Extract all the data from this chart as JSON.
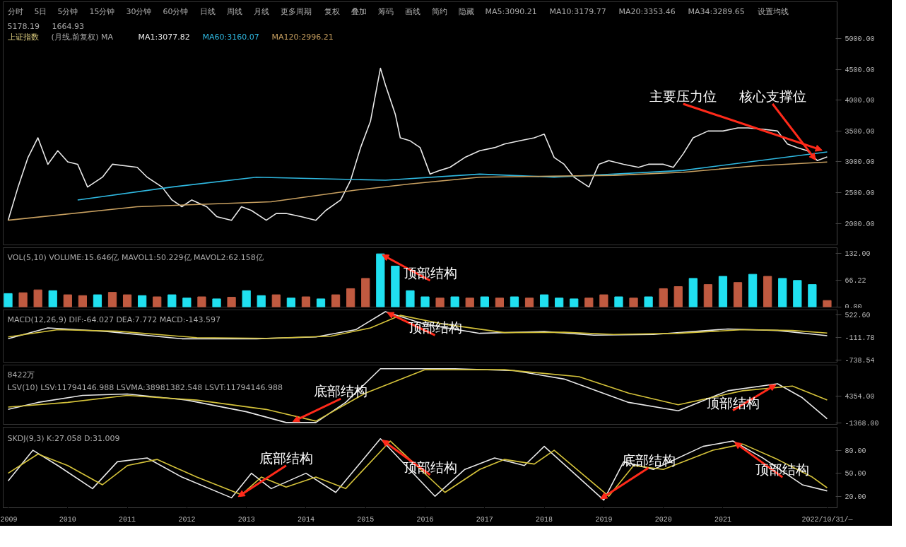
{
  "chart_data": [
    {
      "type": "line",
      "title": "上证指数",
      "subtitle": "(月线,前复权)  MA",
      "xlim": [
        "2008-12",
        "2022-12"
      ],
      "ylim": [
        1650,
        5600
      ],
      "yticks": [
        {
          "value": 2000,
          "label": "2000.00"
        },
        {
          "value": 2500,
          "label": "2500.00"
        },
        {
          "value": 3000,
          "label": "3000.00"
        },
        {
          "value": 3500,
          "label": "3500.00"
        },
        {
          "value": 4000,
          "label": "4000.00"
        },
        {
          "value": 4500,
          "label": "4500.00"
        },
        {
          "value": 5000,
          "label": "5000.00"
        }
      ],
      "tick_labels": "y",
      "series": [
        {
          "name": "MA1:3077.82",
          "color": "#e8e8e8",
          "x": [
            "2009-01",
            "2009-03",
            "2009-05",
            "2009-07",
            "2009-09",
            "2009-11",
            "2010-01",
            "2010-03",
            "2010-05",
            "2010-08",
            "2010-10",
            "2011-01",
            "2011-03",
            "2011-05",
            "2011-08",
            "2011-10",
            "2011-12",
            "2012-02",
            "2012-05",
            "2012-07",
            "2012-10",
            "2012-12",
            "2013-02",
            "2013-05",
            "2013-07",
            "2013-09",
            "2013-12",
            "2014-03",
            "2014-05",
            "2014-08",
            "2014-10",
            "2014-12",
            "2015-02",
            "2015-04",
            "2015-05",
            "2015-07",
            "2015-08",
            "2015-10",
            "2015-12",
            "2016-02",
            "2016-04",
            "2016-06",
            "2016-09",
            "2016-12",
            "2017-03",
            "2017-05",
            "2017-08",
            "2017-11",
            "2018-01",
            "2018-03",
            "2018-05",
            "2018-07",
            "2018-10",
            "2018-12",
            "2019-02",
            "2019-05",
            "2019-08",
            "2019-10",
            "2020-01",
            "2020-03",
            "2020-05",
            "2020-07",
            "2020-10",
            "2021-01",
            "2021-04",
            "2021-06",
            "2021-09",
            "2021-12",
            "2022-02",
            "2022-04",
            "2022-06",
            "2022-08",
            "2022-10"
          ],
          "values": [
            2050,
            2590,
            3070,
            3390,
            2960,
            3180,
            3000,
            2960,
            2590,
            2750,
            2960,
            2930,
            2910,
            2750,
            2590,
            2380,
            2270,
            2380,
            2270,
            2110,
            2050,
            2270,
            2210,
            2050,
            2160,
            2160,
            2110,
            2050,
            2210,
            2380,
            2700,
            3230,
            3660,
            4520,
            4250,
            3770,
            3390,
            3340,
            3230,
            2800,
            2860,
            2910,
            3070,
            3180,
            3230,
            3290,
            3340,
            3390,
            3450,
            3070,
            2960,
            2750,
            2590,
            2960,
            3020,
            2960,
            2910,
            2960,
            2960,
            2910,
            3130,
            3390,
            3500,
            3500,
            3550,
            3550,
            3530,
            3500,
            3290,
            3230,
            3180,
            3020,
            3080
          ]
        },
        {
          "name": "MA60:3160.07",
          "color": "#2fb8e0",
          "x": [
            "2010-03",
            "2011-10",
            "2013-03",
            "2015-05",
            "2016-12",
            "2018-03",
            "2020-05",
            "2022-10"
          ],
          "values": [
            2380,
            2590,
            2750,
            2700,
            2800,
            2750,
            2860,
            3160
          ]
        },
        {
          "name": "MA120:2996.21",
          "color": "#c8a060",
          "x": [
            "2009-01",
            "2011-03",
            "2013-06",
            "2014-11",
            "2015-10",
            "2016-12",
            "2019-03",
            "2020-05",
            "2021-07",
            "2022-10"
          ],
          "values": [
            2050,
            2270,
            2350,
            2540,
            2640,
            2750,
            2780,
            2830,
            2930,
            2996
          ]
        }
      ],
      "annotations": [
        "分时",
        "5日",
        "5分钟",
        "15分钟",
        "30分钟",
        "60分钟",
        "日线",
        "周线",
        "月线",
        "更多周期",
        "复权",
        "叠加",
        "筹码",
        "画线",
        "简约",
        "隐藏",
        "MA5:3090.21",
        "MA10:3179.77",
        "MA20:3353.46",
        "MA34:3289.65",
        "设置均线",
        "5178.19",
        "1664.93",
        {
          "text": "核心支撑位",
          "x": "2022-08",
          "y": 2996
        },
        {
          "text": "主要压力位",
          "x": "2022-10",
          "y": 3160
        }
      ]
    },
    {
      "type": "bar",
      "subtitle": "VOL(5,10)  VOLUME:15.646亿  MAVOL1:50.229亿  MAVOL2:62.158亿",
      "xlim": [
        "2008-12",
        "2022-12"
      ],
      "ylim": [
        0,
        145
      ],
      "yticks": [
        {
          "value": 0,
          "label": "0.00"
        },
        {
          "value": 66.22,
          "label": "66.22"
        },
        {
          "value": 132,
          "label": "132.00"
        }
      ],
      "tick_labels": "y",
      "series": [
        {
          "x": [
            "2009-01",
            "2009-04",
            "2009-07",
            "2009-10",
            "2010-01",
            "2010-04",
            "2010-07",
            "2010-10",
            "2011-01",
            "2011-04",
            "2011-07",
            "2011-10",
            "2012-01",
            "2012-04",
            "2012-07",
            "2012-10",
            "2013-01",
            "2013-04",
            "2013-07",
            "2013-10",
            "2014-01",
            "2014-04",
            "2014-07",
            "2014-10",
            "2015-01",
            "2015-04",
            "2015-07",
            "2015-10",
            "2016-01",
            "2016-04",
            "2016-07",
            "2016-10",
            "2017-01",
            "2017-04",
            "2017-07",
            "2017-10",
            "2018-01",
            "2018-04",
            "2018-07",
            "2018-10",
            "2019-01",
            "2019-04",
            "2019-07",
            "2019-10",
            "2020-01",
            "2020-04",
            "2020-07",
            "2020-10",
            "2021-01",
            "2021-04",
            "2021-07",
            "2021-10",
            "2022-01",
            "2022-04",
            "2022-07",
            "2022-10"
          ],
          "values": [
            33,
            35,
            42,
            40,
            30,
            28,
            30,
            36,
            30,
            28,
            25,
            30,
            22,
            25,
            20,
            24,
            40,
            28,
            30,
            22,
            25,
            20,
            30,
            45,
            70,
            130,
            100,
            40,
            25,
            22,
            25,
            22,
            25,
            22,
            25,
            22,
            30,
            22,
            20,
            22,
            30,
            25,
            22,
            25,
            45,
            50,
            70,
            55,
            75,
            60,
            80,
            75,
            70,
            65,
            55,
            16
          ],
          "colors": [
            "#20e0f0",
            "#c05a40",
            "#c05a40",
            "#20e0f0",
            "#c05a40",
            "#c05a40",
            "#20e0f0",
            "#c05a40",
            "#c05a40",
            "#20e0f0",
            "#c05a40",
            "#20e0f0",
            "#20e0f0",
            "#c05a40",
            "#20e0f0",
            "#c05a40",
            "#20e0f0",
            "#20e0f0",
            "#c05a40",
            "#20e0f0",
            "#c05a40",
            "#20e0f0",
            "#c05a40",
            "#c05a40",
            "#c05a40",
            "#20e0f0",
            "#20e0f0",
            "#20e0f0",
            "#20e0f0",
            "#c05a40",
            "#20e0f0",
            "#c05a40",
            "#20e0f0",
            "#c05a40",
            "#20e0f0",
            "#c05a40",
            "#20e0f0",
            "#20e0f0",
            "#20e0f0",
            "#c05a40",
            "#c05a40",
            "#20e0f0",
            "#c05a40",
            "#20e0f0",
            "#c05a40",
            "#c05a40",
            "#20e0f0",
            "#c05a40",
            "#20e0f0",
            "#c05a40",
            "#20e0f0",
            "#c05a40",
            "#20e0f0",
            "#20e0f0",
            "#20e0f0",
            "#c05a40"
          ]
        }
      ],
      "annotations": [
        {
          "text": "顶部结构",
          "x": "2015-04",
          "y": 130
        }
      ]
    },
    {
      "type": "line",
      "subtitle": "MACD(12,26,9)  DIF:-64.027  DEA:7.772  MACD:-143.597",
      "xlim": [
        "2008-12",
        "2022-12"
      ],
      "ylim": [
        -800,
        650
      ],
      "yticks": [
        {
          "value": -738.54,
          "label": "-738.54"
        },
        {
          "value": -111.78,
          "label": "-111.78"
        },
        {
          "value": 522.6,
          "label": "522.60"
        }
      ],
      "tick_labels": "y",
      "series": [
        {
          "color": "#e8e8e8",
          "x": [
            "2009-01",
            "2009-09",
            "2010-09",
            "2011-12",
            "2013-03",
            "2014-03",
            "2014-11",
            "2015-05",
            "2016-01",
            "2016-12",
            "2018-01",
            "2018-11",
            "2019-11",
            "2021-02",
            "2021-12",
            "2022-10"
          ],
          "values": [
            -150,
            150,
            50,
            -150,
            -150,
            -100,
            100,
            600,
            250,
            0,
            50,
            -50,
            -30,
            120,
            80,
            -64
          ]
        },
        {
          "color": "#d4c23a",
          "x": [
            "2009-01",
            "2009-11",
            "2010-11",
            "2012-03",
            "2013-05",
            "2014-06",
            "2015-02",
            "2015-08",
            "2016-05",
            "2017-05",
            "2018-05",
            "2019-03",
            "2020-04",
            "2021-05",
            "2022-03",
            "2022-10"
          ],
          "values": [
            -100,
            100,
            60,
            -120,
            -140,
            -80,
            150,
            500,
            250,
            20,
            30,
            -30,
            0,
            100,
            80,
            8
          ]
        }
      ],
      "annotations": [
        {
          "text": "顶部结构",
          "x": "2015-05",
          "y": 600
        }
      ]
    },
    {
      "type": "line",
      "subtitle": "LSV(10)  LSV:11794146.988  LSVMA:38981382.548  LSVT:11794146.988",
      "xlim": [
        "2008-12",
        "2022-12"
      ],
      "ylim": [
        -1700,
        11000
      ],
      "yticks": [
        {
          "value": -1368,
          "label": "-1368.00"
        },
        {
          "value": 4354,
          "label": "4354.00"
        }
      ],
      "tick_labels": "y",
      "series": [
        {
          "color": "#e8e8e8",
          "x": [
            "2009-01",
            "2009-07",
            "2010-04",
            "2011-01",
            "2012-01",
            "2013-01",
            "2013-09",
            "2014-03",
            "2014-09",
            "2015-04",
            "2016-07",
            "2017-07",
            "2018-05",
            "2019-06",
            "2020-04",
            "2021-02",
            "2021-12",
            "2022-05",
            "2022-10"
          ],
          "values": [
            1500,
            3000,
            4500,
            4800,
            3500,
            1000,
            -1300,
            -1300,
            3000,
            10200,
            10200,
            9800,
            8000,
            3000,
            1200,
            5500,
            7000,
            4000,
            -500
          ]
        },
        {
          "color": "#d4c23a",
          "x": [
            "2009-01",
            "2010-01",
            "2011-01",
            "2012-03",
            "2013-05",
            "2014-03",
            "2015-01",
            "2016-01",
            "2017-05",
            "2018-08",
            "2019-06",
            "2020-04",
            "2021-05",
            "2022-03",
            "2022-10"
          ],
          "values": [
            2000,
            3000,
            4500,
            3500,
            1500,
            -1000,
            5000,
            10000,
            10000,
            8500,
            5000,
            2500,
            5500,
            6500,
            3500
          ]
        }
      ],
      "annotations": [
        "8422万",
        {
          "text": "底部结构",
          "x": "2013-10",
          "y": -1300
        },
        {
          "text": "顶部结构",
          "x": "2021-12",
          "y": 7000
        }
      ]
    },
    {
      "type": "line",
      "subtitle": "SKDJ(9,3)  K:27.058  D:31.009",
      "xlim": [
        "2008-12",
        "2022-12"
      ],
      "ylim": [
        5,
        110
      ],
      "yticks": [
        {
          "value": 20,
          "label": "20.00"
        },
        {
          "value": 50,
          "label": "50.00"
        },
        {
          "value": 80,
          "label": "80.00"
        }
      ],
      "xticks": [
        {
          "value": "2009-01",
          "label": "2009"
        },
        {
          "value": "2010-01",
          "label": "2010"
        },
        {
          "value": "2011-01",
          "label": "2011"
        },
        {
          "value": "2012-01",
          "label": "2012"
        },
        {
          "value": "2013-01",
          "label": "2013"
        },
        {
          "value": "2014-01",
          "label": "2014"
        },
        {
          "value": "2015-01",
          "label": "2015"
        },
        {
          "value": "2016-01",
          "label": "2016"
        },
        {
          "value": "2017-01",
          "label": "2017"
        },
        {
          "value": "2018-01",
          "label": "2018"
        },
        {
          "value": "2019-01",
          "label": "2019"
        },
        {
          "value": "2020-01",
          "label": "2020"
        },
        {
          "value": "2021-01",
          "label": "2021"
        },
        {
          "value": "2022-10",
          "label": "2022/10/31/—"
        }
      ],
      "series": [
        {
          "color": "#e8e8e8",
          "x": [
            "2009-01",
            "2009-06",
            "2009-11",
            "2010-06",
            "2010-11",
            "2011-05",
            "2011-12",
            "2012-10",
            "2013-02",
            "2013-06",
            "2014-01",
            "2014-07",
            "2015-04",
            "2016-03",
            "2016-09",
            "2017-03",
            "2017-09",
            "2018-01",
            "2019-01",
            "2019-05",
            "2019-11",
            "2020-09",
            "2021-03",
            "2021-09",
            "2022-05",
            "2022-10"
          ],
          "values": [
            40,
            80,
            60,
            30,
            65,
            70,
            45,
            18,
            50,
            30,
            50,
            25,
            95,
            20,
            55,
            70,
            60,
            85,
            15,
            65,
            55,
            85,
            92,
            70,
            35,
            27
          ]
        },
        {
          "color": "#d4c23a",
          "x": [
            "2009-01",
            "2009-07",
            "2010-01",
            "2010-08",
            "2011-01",
            "2011-07",
            "2012-03",
            "2012-12",
            "2013-04",
            "2013-09",
            "2014-03",
            "2014-09",
            "2015-06",
            "2016-05",
            "2016-12",
            "2017-05",
            "2017-11",
            "2018-03",
            "2019-02",
            "2019-07",
            "2020-01",
            "2020-11",
            "2021-05",
            "2021-12",
            "2022-07",
            "2022-10"
          ],
          "values": [
            50,
            75,
            60,
            35,
            60,
            68,
            45,
            22,
            45,
            32,
            45,
            30,
            92,
            25,
            55,
            68,
            62,
            80,
            20,
            60,
            55,
            80,
            88,
            68,
            45,
            31
          ]
        }
      ],
      "annotations": [
        {
          "text": "底部结构",
          "x": "2012-11",
          "y": 18
        },
        {
          "text": "顶部结构",
          "x": "2015-04",
          "y": 95
        },
        {
          "text": "底部结构",
          "x": "2018-12",
          "y": 15
        },
        {
          "text": "顶部结构",
          "x": "2021-03",
          "y": 92
        }
      ]
    }
  ]
}
